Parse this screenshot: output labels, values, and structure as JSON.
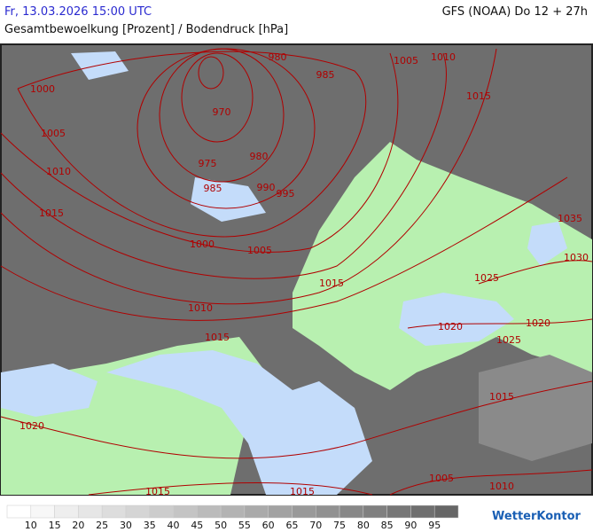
{
  "header": {
    "datetime": "Fr, 13.03.2026 15:00 UTC",
    "title": "Gesamtbewoelkung [Prozent] / Bodendruck [hPa]",
    "model": "GFS (NOAA) Do 12 + 27h"
  },
  "isobar_labels": [
    "980",
    "985",
    "1005",
    "1010",
    "1015",
    "1000",
    "970",
    "1005",
    "975",
    "980",
    "1010",
    "985",
    "990",
    "995",
    "1015",
    "1035",
    "1000",
    "1005",
    "1030",
    "1015",
    "1025",
    "1010",
    "1020",
    "1020",
    "1015",
    "1025",
    "1015",
    "1020",
    "1005",
    "1010",
    "1015",
    "1015"
  ],
  "legend": {
    "labels": [
      10,
      15,
      20,
      25,
      30,
      35,
      40,
      45,
      50,
      55,
      60,
      65,
      70,
      75,
      80,
      85,
      90,
      95
    ]
  },
  "logo": "WetterKontor"
}
